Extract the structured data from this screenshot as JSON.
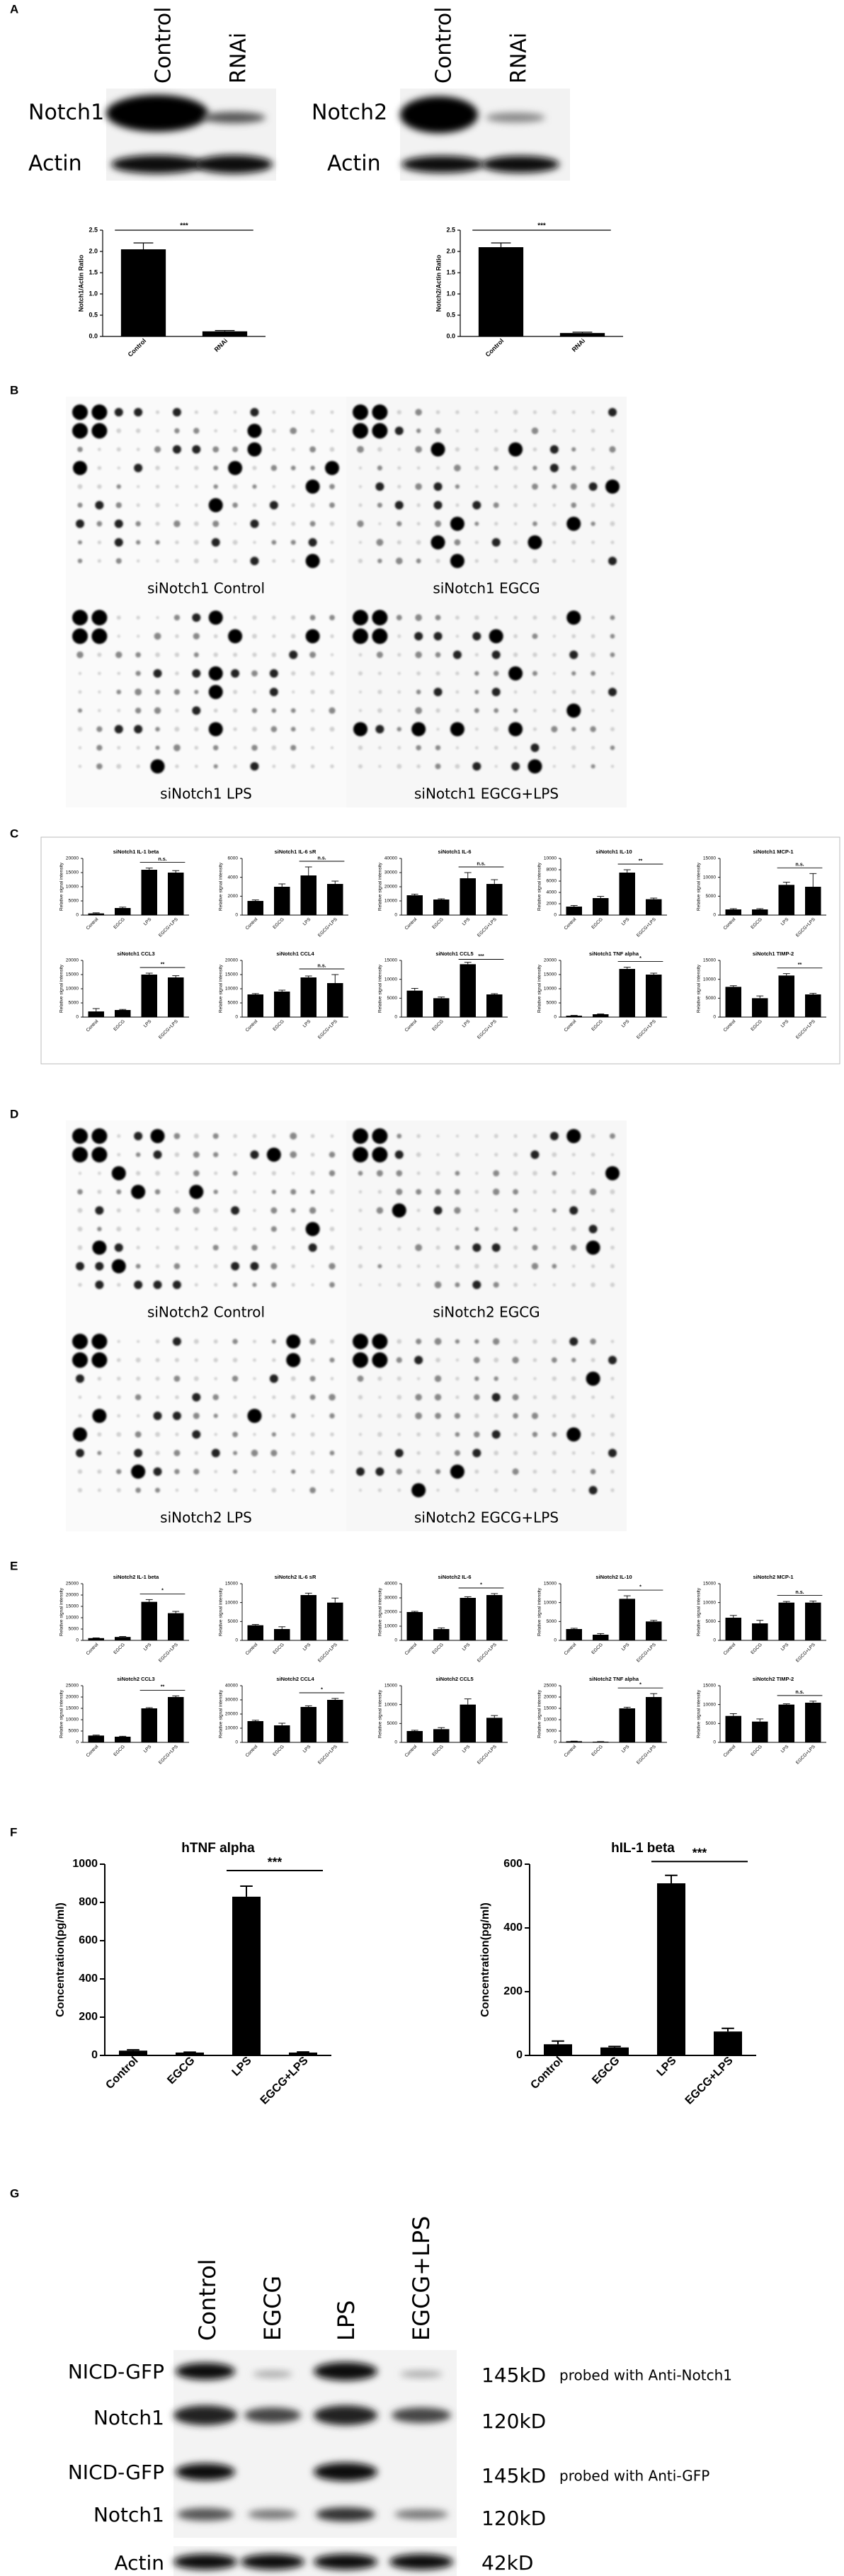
{
  "panels": [
    "A",
    "B",
    "C",
    "D",
    "E",
    "F",
    "G"
  ],
  "blot_a": [
    {
      "lanes": [
        "Control",
        "RNAi"
      ],
      "rows": [
        "Notch1",
        "Actin"
      ]
    },
    {
      "lanes": [
        "Control",
        "RNAi"
      ],
      "rows": [
        "Notch2",
        "Actin"
      ]
    }
  ],
  "array_b": [
    "siNotch1 Control",
    "siNotch1 EGCG",
    "siNotch1 LPS",
    "siNotch1 EGCG+LPS"
  ],
  "array_d": [
    "siNotch2 Control",
    "siNotch2 EGCG",
    "siNotch2 LPS",
    "siNotch2 EGCG+LPS"
  ],
  "blot_g": {
    "lanes": [
      "Control",
      "EGCG",
      "LPS",
      "EGCG+LPS"
    ],
    "rows": [
      "NICD-GFP",
      "Notch1",
      "NICD-GFP",
      "Notch1",
      "Actin"
    ],
    "sizes": [
      "145kD",
      "120kD",
      "145kD",
      "120kD",
      "42kD"
    ],
    "notes": [
      "probed with Anti-Notch1",
      "probed with Anti-GFP"
    ]
  },
  "chart_data": [
    {
      "type": "bar",
      "y_label": "Notch1/Actin Ratio",
      "categories": [
        "Control",
        "RNAi"
      ],
      "values": [
        2.05,
        0.12
      ],
      "errors": [
        0.15,
        0.02
      ],
      "ylim": [
        0,
        2.5
      ],
      "yticks": [
        {
          "value": 0,
          "label": "0.0"
        },
        0.5,
        {
          "value": 1,
          "label": "1.0"
        },
        1.5,
        {
          "value": 2,
          "label": "2.0"
        },
        2.5
      ],
      "significance": "***",
      "color": "#000000"
    },
    {
      "type": "bar",
      "y_label": "Notch2/Actin Ratio",
      "categories": [
        "Control",
        "RNAi"
      ],
      "values": [
        2.1,
        0.08
      ],
      "errors": [
        0.1,
        0.02
      ],
      "ylim": [
        0,
        2.5
      ],
      "yticks": [
        {
          "value": 0,
          "label": "0.0"
        },
        0.5,
        {
          "value": 1,
          "label": "1.0"
        },
        1.5,
        {
          "value": 2,
          "label": "2.0"
        },
        2.5
      ],
      "significance": "***",
      "color": "#000000"
    },
    {
      "type": "bar",
      "title": "siNotch1 IL-1 beta",
      "y_label": "Relative signal intensity",
      "categories": [
        "Control",
        "EGCG",
        "LPS",
        "EGCG+LPS"
      ],
      "values": [
        600,
        2500,
        16000,
        15000
      ],
      "errors": [
        200,
        300,
        600,
        700
      ],
      "ylim": [
        0,
        20000
      ],
      "yticks": [
        0,
        5000,
        10000,
        15000,
        20000
      ],
      "significance": "n.s.",
      "color": "#000000"
    },
    {
      "type": "bar",
      "title": "siNotch1 IL-6 sR",
      "y_label": "Relative signal intensity",
      "categories": [
        "Control",
        "EGCG",
        "LPS",
        "EGCG+LPS"
      ],
      "values": [
        1500,
        3000,
        4200,
        3300
      ],
      "errors": [
        100,
        300,
        900,
        300
      ],
      "ylim": [
        0,
        6000
      ],
      "yticks": [
        0,
        2000,
        4000,
        6000
      ],
      "significance": "n.s.",
      "color": "#000000"
    },
    {
      "type": "bar",
      "title": "siNotch1 IL-6",
      "y_label": "Relative signal intensity",
      "categories": [
        "Control",
        "EGCG",
        "LPS",
        "EGCG+LPS"
      ],
      "values": [
        14000,
        11000,
        26000,
        22000
      ],
      "errors": [
        800,
        500,
        4000,
        3000
      ],
      "ylim": [
        0,
        40000
      ],
      "yticks": [
        0,
        10000,
        20000,
        30000,
        40000
      ],
      "significance": "n.s.",
      "color": "#000000"
    },
    {
      "type": "bar",
      "title": "siNotch1 IL-10",
      "y_label": "Relative signal intensity",
      "categories": [
        "Control",
        "EGCG",
        "LPS",
        "EGCG+LPS"
      ],
      "values": [
        1500,
        3000,
        7500,
        2800
      ],
      "errors": [
        200,
        300,
        500,
        200
      ],
      "ylim": [
        0,
        10000
      ],
      "yticks": [
        0,
        2000,
        4000,
        6000,
        8000,
        10000
      ],
      "significance": "**",
      "color": "#000000"
    },
    {
      "type": "bar",
      "title": "siNotch1 MCP-1",
      "y_label": "Relative signal intensity",
      "categories": [
        "Control",
        "EGCG",
        "LPS",
        "EGCG+LPS"
      ],
      "values": [
        1500,
        1500,
        8000,
        7500
      ],
      "errors": [
        200,
        200,
        700,
        3500
      ],
      "ylim": [
        0,
        15000
      ],
      "yticks": [
        0,
        5000,
        10000,
        15000
      ],
      "significance": "n.s.",
      "color": "#000000"
    },
    {
      "type": "bar",
      "title": "siNotch1 CCL3",
      "y_label": "Relative signal intensity",
      "categories": [
        "Control",
        "EGCG",
        "LPS",
        "EGCG+LPS"
      ],
      "values": [
        2000,
        2500,
        15000,
        14000
      ],
      "errors": [
        1000,
        200,
        500,
        600
      ],
      "ylim": [
        0,
        20000
      ],
      "yticks": [
        0,
        5000,
        10000,
        15000,
        20000
      ],
      "significance": "**",
      "color": "#000000"
    },
    {
      "type": "bar",
      "title": "siNotch1 CCL4",
      "y_label": "Relative signal intensity",
      "categories": [
        "Control",
        "EGCG",
        "LPS",
        "EGCG+LPS"
      ],
      "values": [
        8000,
        9000,
        14000,
        12000
      ],
      "errors": [
        300,
        500,
        500,
        3000
      ],
      "ylim": [
        0,
        20000
      ],
      "yticks": [
        0,
        5000,
        10000,
        15000,
        20000
      ],
      "significance": "n.s.",
      "color": "#000000"
    },
    {
      "type": "bar",
      "title": "siNotch1 CCL5",
      "y_label": "Relative signal intensity",
      "categories": [
        "Control",
        "EGCG",
        "LPS",
        "EGCG+LPS"
      ],
      "values": [
        7000,
        5000,
        14000,
        6000
      ],
      "errors": [
        600,
        300,
        500,
        200
      ],
      "ylim": [
        0,
        15000
      ],
      "yticks": [
        0,
        5000,
        10000,
        15000
      ],
      "significance": "***",
      "color": "#000000"
    },
    {
      "type": "bar",
      "title": "siNotch1 TNF alpha",
      "y_label": "Relative signal intensity",
      "categories": [
        "Control",
        "EGCG",
        "LPS",
        "EGCG+LPS"
      ],
      "values": [
        500,
        1000,
        17000,
        15000
      ],
      "errors": [
        100,
        100,
        600,
        500
      ],
      "ylim": [
        0,
        20000
      ],
      "yticks": [
        0,
        5000,
        10000,
        15000,
        20000
      ],
      "significance": "*",
      "color": "#000000"
    },
    {
      "type": "bar",
      "title": "siNotch1 TIMP-2",
      "y_label": "Relative signal intensity",
      "categories": [
        "Control",
        "EGCG",
        "LPS",
        "EGCG+LPS"
      ],
      "values": [
        8000,
        5000,
        11000,
        6000
      ],
      "errors": [
        300,
        600,
        500,
        300
      ],
      "ylim": [
        0,
        15000
      ],
      "yticks": [
        0,
        5000,
        10000,
        15000
      ],
      "significance": "**",
      "color": "#000000"
    },
    {
      "type": "bar",
      "title": "siNotch2 IL-1 beta",
      "y_label": "Relative signal intensity",
      "categories": [
        "Control",
        "EGCG",
        "LPS",
        "EGCG+LPS"
      ],
      "values": [
        1000,
        1500,
        17000,
        12000
      ],
      "errors": [
        100,
        200,
        1000,
        800
      ],
      "ylim": [
        0,
        25000
      ],
      "yticks": [
        0,
        5000,
        10000,
        15000,
        20000,
        25000
      ],
      "significance": "*",
      "color": "#000000"
    },
    {
      "type": "bar",
      "title": "siNotch2 IL-6 sR",
      "y_label": "Relative signal intensity",
      "categories": [
        "Control",
        "EGCG",
        "LPS",
        "EGCG+LPS"
      ],
      "values": [
        4000,
        3000,
        12000,
        10000
      ],
      "errors": [
        200,
        600,
        500,
        1200
      ],
      "ylim": [
        0,
        15000
      ],
      "yticks": [
        0,
        5000,
        10000,
        15000
      ],
      "color": "#000000"
    },
    {
      "type": "bar",
      "title": "siNotch2 IL-6",
      "y_label": "Relative signal intensity",
      "categories": [
        "Control",
        "EGCG",
        "LPS",
        "EGCG+LPS"
      ],
      "values": [
        20000,
        8000,
        30000,
        32000
      ],
      "errors": [
        500,
        800,
        800,
        1000
      ],
      "ylim": [
        0,
        40000
      ],
      "yticks": [
        0,
        10000,
        20000,
        30000,
        40000
      ],
      "significance": "*",
      "color": "#000000"
    },
    {
      "type": "bar",
      "title": "siNotch2 IL-10",
      "y_label": "Relative signal intensity",
      "categories": [
        "Control",
        "EGCG",
        "LPS",
        "EGCG+LPS"
      ],
      "values": [
        3000,
        1500,
        11000,
        5000
      ],
      "errors": [
        200,
        300,
        800,
        300
      ],
      "ylim": [
        0,
        15000
      ],
      "yticks": [
        0,
        5000,
        10000,
        15000
      ],
      "significance": "*",
      "color": "#000000"
    },
    {
      "type": "bar",
      "title": "siNotch2 MCP-1",
      "y_label": "Relative signal intensity",
      "categories": [
        "Control",
        "EGCG",
        "LPS",
        "EGCG+LPS"
      ],
      "values": [
        6000,
        4500,
        10000,
        10000
      ],
      "errors": [
        600,
        800,
        300,
        400
      ],
      "ylim": [
        0,
        15000
      ],
      "yticks": [
        0,
        5000,
        10000,
        15000
      ],
      "significance": "n.s.",
      "color": "#000000"
    },
    {
      "type": "bar",
      "title": "siNotch2 CCL3",
      "y_label": "Relative signal intensity",
      "categories": [
        "Control",
        "EGCG",
        "LPS",
        "EGCG+LPS"
      ],
      "values": [
        3000,
        2500,
        15000,
        20000
      ],
      "errors": [
        200,
        200,
        300,
        500
      ],
      "ylim": [
        0,
        25000
      ],
      "yticks": [
        0,
        5000,
        10000,
        15000,
        20000,
        25000
      ],
      "significance": "**",
      "color": "#000000"
    },
    {
      "type": "bar",
      "title": "siNotch2 CCL4",
      "y_label": "Relative signal intensity",
      "categories": [
        "Control",
        "EGCG",
        "LPS",
        "EGCG+LPS"
      ],
      "values": [
        15000,
        12000,
        25000,
        30000
      ],
      "errors": [
        600,
        1500,
        800,
        1000
      ],
      "ylim": [
        0,
        40000
      ],
      "yticks": [
        0,
        10000,
        20000,
        30000,
        40000
      ],
      "significance": "*",
      "color": "#000000"
    },
    {
      "type": "bar",
      "title": "siNotch2 CCL5",
      "y_label": "Relative signal intensity",
      "categories": [
        "Control",
        "EGCG",
        "LPS",
        "EGCG+LPS"
      ],
      "values": [
        3000,
        3500,
        10000,
        6500
      ],
      "errors": [
        200,
        400,
        1500,
        600
      ],
      "ylim": [
        0,
        15000
      ],
      "yticks": [
        0,
        5000,
        10000,
        15000
      ],
      "color": "#000000"
    },
    {
      "type": "bar",
      "title": "siNotch2 TNF alpha",
      "y_label": "Relative signal intensity",
      "categories": [
        "Control",
        "EGCG",
        "LPS",
        "EGCG+LPS"
      ],
      "values": [
        500,
        300,
        15000,
        20000
      ],
      "errors": [
        50,
        50,
        500,
        1500
      ],
      "ylim": [
        0,
        25000
      ],
      "yticks": [
        0,
        5000,
        10000,
        15000,
        20000,
        25000
      ],
      "significance": "*",
      "color": "#000000"
    },
    {
      "type": "bar",
      "title": "siNotch2 TIMP-2",
      "y_label": "Relative signal intensity",
      "categories": [
        "Control",
        "EGCG",
        "LPS",
        "EGCG+LPS"
      ],
      "values": [
        7000,
        5500,
        10000,
        10500
      ],
      "errors": [
        600,
        700,
        200,
        400
      ],
      "ylim": [
        0,
        15000
      ],
      "yticks": [
        0,
        5000,
        10000,
        15000
      ],
      "significance": "n.s.",
      "color": "#000000"
    },
    {
      "type": "bar",
      "title": "hTNF alpha",
      "y_label": "Concentration(pg/ml)",
      "categories": [
        "Control",
        "EGCG",
        "LPS",
        "EGCG+LPS"
      ],
      "values": [
        25,
        15,
        830,
        15
      ],
      "errors": [
        4,
        2,
        55,
        3
      ],
      "ylim": [
        0,
        1000
      ],
      "yticks": [
        0,
        200,
        400,
        600,
        800,
        1000
      ],
      "significance": "***",
      "color": "#000000"
    },
    {
      "type": "bar",
      "title": "hIL-1 beta",
      "y_label": "Concentration(pg/ml)",
      "categories": [
        "Control",
        "EGCG",
        "LPS",
        "EGCG+LPS"
      ],
      "values": [
        35,
        25,
        540,
        75
      ],
      "errors": [
        10,
        3,
        25,
        10
      ],
      "ylim": [
        0,
        600
      ],
      "yticks": [
        0,
        200,
        400,
        600
      ],
      "significance": "***",
      "color": "#000000"
    }
  ]
}
